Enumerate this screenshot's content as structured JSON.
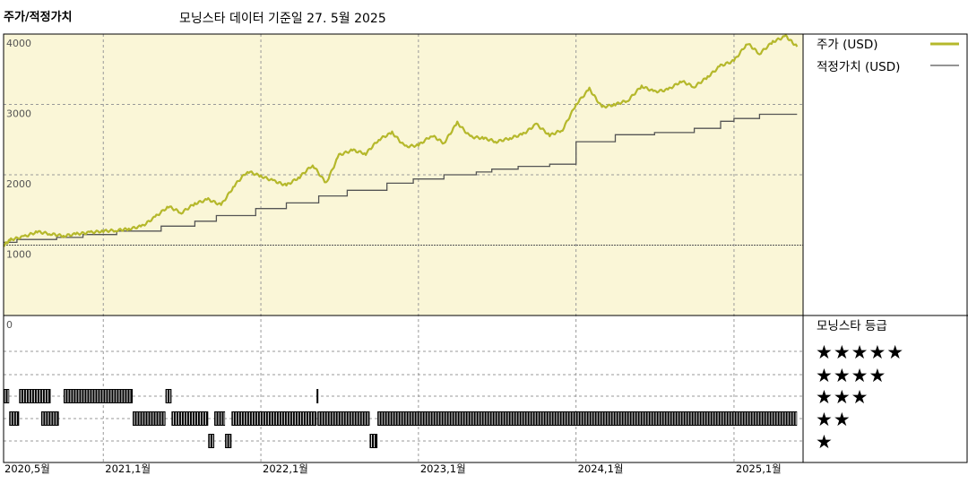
{
  "chart_data": {
    "type": "line",
    "title": "주가/적정가치",
    "subtitle": "모닝스타 데이터 기준일 27. 5월 2025",
    "colors": {
      "price": "#b5b82b",
      "fair_value": "#555555",
      "plot_bg": "#faf6d7"
    },
    "x_range": [
      "2020-05-15",
      "2025-06-10"
    ],
    "x_ticks": [
      {
        "date": "2020-05-15",
        "label": "2020,5월"
      },
      {
        "date": "2021-01-01",
        "label": "2021,1월"
      },
      {
        "date": "2022-01-01",
        "label": "2022,1월"
      },
      {
        "date": "2023-01-01",
        "label": "2023,1월"
      },
      {
        "date": "2024-01-01",
        "label": "2024,1월"
      },
      {
        "date": "2025-01-01",
        "label": "2025,1월"
      }
    ],
    "y_range": [
      0,
      4000
    ],
    "y_ticks": [
      4000,
      3000,
      2000,
      1000
    ],
    "grid": true,
    "series": [
      {
        "name": "주가 (USD)",
        "key": "price",
        "points": [
          [
            "2020-05-15",
            1000
          ],
          [
            "2020-06-01",
            1080
          ],
          [
            "2020-07-01",
            1120
          ],
          [
            "2020-08-01",
            1190
          ],
          [
            "2020-09-01",
            1160
          ],
          [
            "2020-10-01",
            1130
          ],
          [
            "2020-11-01",
            1160
          ],
          [
            "2020-12-01",
            1180
          ],
          [
            "2021-01-01",
            1200
          ],
          [
            "2021-02-01",
            1210
          ],
          [
            "2021-03-01",
            1230
          ],
          [
            "2021-04-01",
            1270
          ],
          [
            "2021-05-01",
            1400
          ],
          [
            "2021-06-01",
            1550
          ],
          [
            "2021-07-01",
            1460
          ],
          [
            "2021-08-01",
            1590
          ],
          [
            "2021-09-01",
            1650
          ],
          [
            "2021-10-01",
            1570
          ],
          [
            "2021-11-01",
            1850
          ],
          [
            "2021-12-01",
            2050
          ],
          [
            "2022-01-01",
            1980
          ],
          [
            "2022-02-01",
            1910
          ],
          [
            "2022-03-01",
            1850
          ],
          [
            "2022-04-01",
            1970
          ],
          [
            "2022-05-01",
            2140
          ],
          [
            "2022-06-01",
            1880
          ],
          [
            "2022-07-01",
            2280
          ],
          [
            "2022-08-01",
            2350
          ],
          [
            "2022-09-01",
            2300
          ],
          [
            "2022-10-01",
            2500
          ],
          [
            "2022-11-01",
            2600
          ],
          [
            "2022-12-01",
            2400
          ],
          [
            "2023-01-01",
            2420
          ],
          [
            "2023-02-01",
            2560
          ],
          [
            "2023-03-01",
            2450
          ],
          [
            "2023-04-01",
            2740
          ],
          [
            "2023-05-01",
            2540
          ],
          [
            "2023-06-01",
            2520
          ],
          [
            "2023-07-01",
            2470
          ],
          [
            "2023-08-01",
            2520
          ],
          [
            "2023-09-01",
            2580
          ],
          [
            "2023-10-01",
            2720
          ],
          [
            "2023-11-01",
            2560
          ],
          [
            "2023-12-01",
            2640
          ],
          [
            "2024-01-01",
            3000
          ],
          [
            "2024-02-01",
            3220
          ],
          [
            "2024-03-01",
            2960
          ],
          [
            "2024-04-01",
            3000
          ],
          [
            "2024-05-01",
            3060
          ],
          [
            "2024-06-01",
            3260
          ],
          [
            "2024-07-01",
            3180
          ],
          [
            "2024-08-01",
            3210
          ],
          [
            "2024-09-01",
            3330
          ],
          [
            "2024-10-01",
            3250
          ],
          [
            "2024-11-01",
            3390
          ],
          [
            "2024-12-01",
            3550
          ],
          [
            "2025-01-01",
            3620
          ],
          [
            "2025-02-01",
            3870
          ],
          [
            "2025-03-01",
            3720
          ],
          [
            "2025-04-01",
            3890
          ],
          [
            "2025-05-01",
            3970
          ],
          [
            "2025-05-27",
            3820
          ]
        ]
      },
      {
        "name": "적정가치 (USD)",
        "key": "fair_value",
        "steps": [
          [
            "2020-05-15",
            1040
          ],
          [
            "2020-06-15",
            1080
          ],
          [
            "2020-09-15",
            1110
          ],
          [
            "2020-11-15",
            1150
          ],
          [
            "2021-02-01",
            1200
          ],
          [
            "2021-05-15",
            1270
          ],
          [
            "2021-08-01",
            1340
          ],
          [
            "2021-09-20",
            1420
          ],
          [
            "2021-12-20",
            1520
          ],
          [
            "2022-03-01",
            1600
          ],
          [
            "2022-05-15",
            1700
          ],
          [
            "2022-07-20",
            1780
          ],
          [
            "2022-10-20",
            1880
          ],
          [
            "2022-12-20",
            1940
          ],
          [
            "2023-03-01",
            2000
          ],
          [
            "2023-05-15",
            2040
          ],
          [
            "2023-06-20",
            2080
          ],
          [
            "2023-08-20",
            2120
          ],
          [
            "2023-11-01",
            2150
          ],
          [
            "2024-01-01",
            2470
          ],
          [
            "2024-04-01",
            2570
          ],
          [
            "2024-07-01",
            2600
          ],
          [
            "2024-10-01",
            2660
          ],
          [
            "2024-12-01",
            2760
          ],
          [
            "2025-01-01",
            2800
          ],
          [
            "2025-03-01",
            2860
          ],
          [
            "2025-05-27",
            2860
          ]
        ]
      }
    ],
    "rating_panel": {
      "title": "모닝스타 등급",
      "zero_label": "0",
      "rows": [
        {
          "label": "★★★★★",
          "stars": 5,
          "periods": []
        },
        {
          "label": "★★★★",
          "stars": 4,
          "periods": []
        },
        {
          "label": "★★★",
          "stars": 3,
          "periods": [
            [
              "2020-05-15",
              "2020-05-28"
            ],
            [
              "2020-06-20",
              "2020-09-01"
            ],
            [
              "2020-10-01",
              "2021-03-10"
            ],
            [
              "2021-05-25",
              "2021-06-08"
            ],
            [
              "2022-05-10",
              "2022-05-12"
            ]
          ]
        },
        {
          "label": "★★",
          "stars": 2,
          "periods": [
            [
              "2020-05-28",
              "2020-06-20"
            ],
            [
              "2020-08-10",
              "2020-09-20"
            ],
            [
              "2021-03-10",
              "2021-05-25"
            ],
            [
              "2021-06-08",
              "2021-09-01"
            ],
            [
              "2021-09-15",
              "2021-10-10"
            ],
            [
              "2021-10-25",
              "2022-05-10"
            ],
            [
              "2022-05-12",
              "2022-09-10"
            ],
            [
              "2022-09-28",
              "2025-05-27"
            ]
          ]
        },
        {
          "label": "★",
          "stars": 1,
          "periods": [
            [
              "2021-09-01",
              "2021-09-15"
            ],
            [
              "2021-10-10",
              "2021-10-25"
            ],
            [
              "2022-09-10",
              "2022-09-28"
            ]
          ]
        }
      ]
    }
  }
}
